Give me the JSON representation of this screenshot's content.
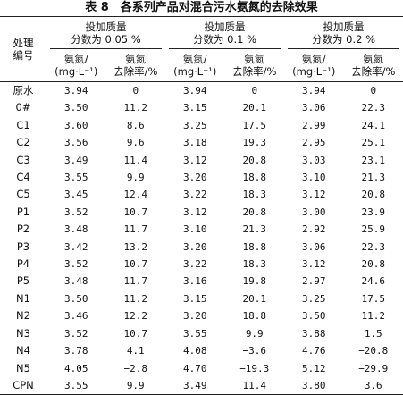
{
  "title": "表 8　各系列产品对混合污水氨氮的去除效果",
  "table": {
    "row_header": [
      "处理",
      "编号"
    ],
    "groups": [
      [
        "投加质量",
        "分数为 0.05 %"
      ],
      [
        "投加质量",
        "分数为 0.1 %"
      ],
      [
        "投加质量",
        "分数为 0.2 %"
      ]
    ],
    "subheaders": [
      [
        "氨氮/",
        "(mg·L⁻¹)"
      ],
      [
        "氨氮",
        "去除率/%"
      ]
    ],
    "rows": [
      [
        "原水",
        "3.94",
        "0",
        "3.94",
        "0",
        "3.94",
        "0"
      ],
      [
        "0#",
        "3.50",
        "11.2",
        "3.15",
        "20.1",
        "3.06",
        "22.3"
      ],
      [
        "C1",
        "3.60",
        "8.6",
        "3.25",
        "17.5",
        "2.99",
        "24.1"
      ],
      [
        "C2",
        "3.56",
        "9.6",
        "3.18",
        "19.3",
        "2.95",
        "25.1"
      ],
      [
        "C3",
        "3.49",
        "11.4",
        "3.12",
        "20.8",
        "3.03",
        "23.1"
      ],
      [
        "C4",
        "3.55",
        "9.9",
        "3.20",
        "18.8",
        "3.10",
        "21.3"
      ],
      [
        "C5",
        "3.45",
        "12.4",
        "3.22",
        "18.3",
        "3.12",
        "20.8"
      ],
      [
        "P1",
        "3.52",
        "10.7",
        "3.12",
        "20.8",
        "3.00",
        "23.9"
      ],
      [
        "P2",
        "3.48",
        "11.7",
        "3.10",
        "21.3",
        "2.92",
        "25.9"
      ],
      [
        "P3",
        "3.42",
        "13.2",
        "3.20",
        "18.8",
        "3.06",
        "22.3"
      ],
      [
        "P4",
        "3.52",
        "10.7",
        "3.22",
        "18.3",
        "3.12",
        "20.8"
      ],
      [
        "P5",
        "3.48",
        "11.7",
        "3.16",
        "19.8",
        "2.97",
        "24.6"
      ],
      [
        "N1",
        "3.50",
        "11.2",
        "3.15",
        "20.1",
        "3.25",
        "17.5"
      ],
      [
        "N2",
        "3.46",
        "12.2",
        "3.20",
        "18.8",
        "3.50",
        "11.2"
      ],
      [
        "N3",
        "3.52",
        "10.7",
        "3.55",
        "9.9",
        "3.88",
        "1.5"
      ],
      [
        "N4",
        "3.78",
        "4.1",
        "4.08",
        "−3.6",
        "4.76",
        "−20.8"
      ],
      [
        "N5",
        "4.05",
        "−2.8",
        "4.70",
        "−19.3",
        "5.12",
        "−29.9"
      ],
      [
        "CPN",
        "3.55",
        "9.9",
        "3.49",
        "11.4",
        "3.80",
        "3.6"
      ]
    ]
  }
}
